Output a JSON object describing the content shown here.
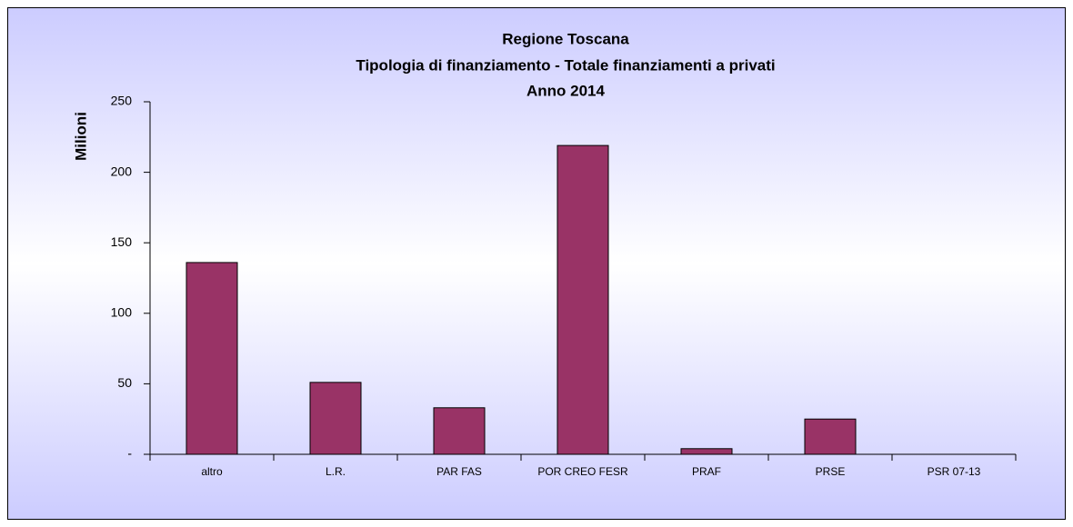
{
  "chart_data": {
    "type": "bar",
    "title": [
      "Regione Toscana",
      "Tipologia di finanziamento - Totale finanziamenti a privati",
      "Anno 2014"
    ],
    "y_label": "Milioni",
    "categories": [
      "altro",
      "L.R.",
      "PAR FAS",
      "POR CREO FESR",
      "PRAF",
      "PRSE",
      "PSR 07-13"
    ],
    "values": [
      136,
      51,
      33,
      219,
      4,
      25,
      0
    ],
    "color": "#993366",
    "ylim": [
      0,
      250
    ],
    "yticks": [
      {
        "value": 0,
        "label": "-"
      },
      50,
      100,
      150,
      200,
      250
    ],
    "grid": false
  }
}
